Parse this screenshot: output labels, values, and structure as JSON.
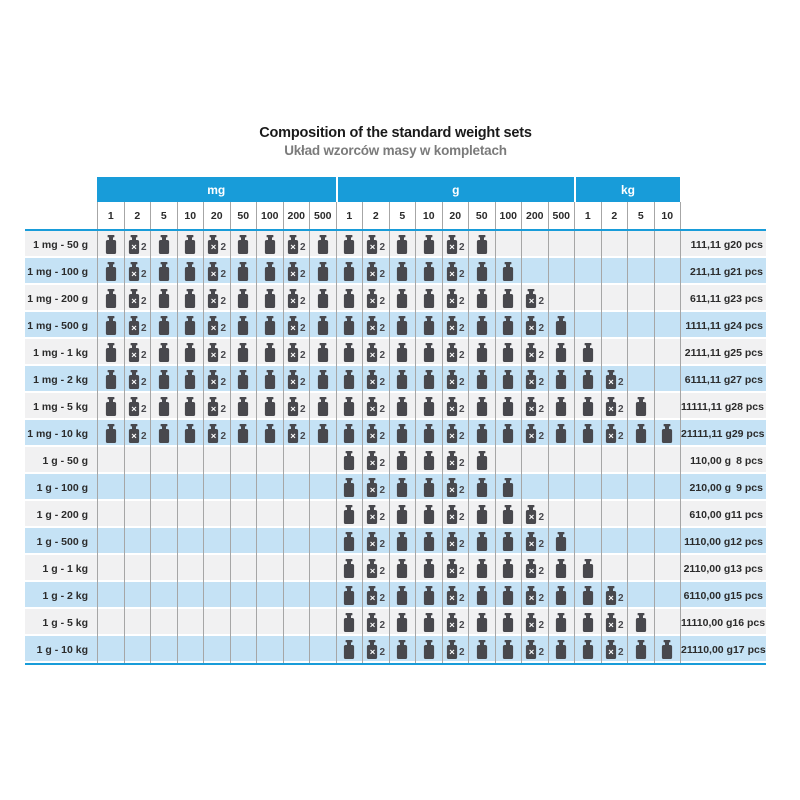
{
  "title": "Composition of the standard weight sets",
  "subtitle": "Układ wzorców masy w kompletach",
  "legend": {
    "cross": "×",
    "count": "2",
    "double_meaning": "two pieces of this denomination"
  },
  "colors": {
    "header_blue": "#189cd9",
    "row_blue": "#c5e2f5",
    "row_gray": "#f1f1f2",
    "grid_line": "#a6a6a6",
    "weight_icon_gray": "#48484d",
    "subtitle_gray": "#7b7b7b"
  },
  "chart_data": {
    "type": "table",
    "title": "Composition of the standard weight sets",
    "subtitle": "Układ wzorców masy w kompletach",
    "unit_groups": [
      {
        "label": "mg",
        "span": 9
      },
      {
        "label": "g",
        "span": 9
      },
      {
        "label": "kg",
        "span": 4
      }
    ],
    "denominations": [
      "1",
      "2",
      "5",
      "10",
      "20",
      "50",
      "100",
      "200",
      "500",
      "1",
      "2",
      "5",
      "10",
      "20",
      "50",
      "100",
      "200",
      "500",
      "1",
      "2",
      "5",
      "10"
    ],
    "cell_legend": {
      "0": "empty",
      "1": "one weight",
      "2": "weight ×2"
    },
    "rows": [
      {
        "label": "1 mg - 50 g",
        "cells": [
          1,
          2,
          1,
          1,
          2,
          1,
          1,
          2,
          1,
          1,
          2,
          1,
          1,
          2,
          1,
          0,
          0,
          0,
          0,
          0,
          0,
          0
        ],
        "mass": "111,11 g",
        "pcs": "20 pcs"
      },
      {
        "label": "1 mg - 100 g",
        "cells": [
          1,
          2,
          1,
          1,
          2,
          1,
          1,
          2,
          1,
          1,
          2,
          1,
          1,
          2,
          1,
          1,
          0,
          0,
          0,
          0,
          0,
          0
        ],
        "mass": "211,11 g",
        "pcs": "21 pcs"
      },
      {
        "label": "1 mg - 200 g",
        "cells": [
          1,
          2,
          1,
          1,
          2,
          1,
          1,
          2,
          1,
          1,
          2,
          1,
          1,
          2,
          1,
          1,
          2,
          0,
          0,
          0,
          0,
          0
        ],
        "mass": "611,11 g",
        "pcs": "23 pcs"
      },
      {
        "label": "1 mg - 500 g",
        "cells": [
          1,
          2,
          1,
          1,
          2,
          1,
          1,
          2,
          1,
          1,
          2,
          1,
          1,
          2,
          1,
          1,
          2,
          1,
          0,
          0,
          0,
          0
        ],
        "mass": "1111,11 g",
        "pcs": "24 pcs"
      },
      {
        "label": "1 mg - 1 kg",
        "cells": [
          1,
          2,
          1,
          1,
          2,
          1,
          1,
          2,
          1,
          1,
          2,
          1,
          1,
          2,
          1,
          1,
          2,
          1,
          1,
          0,
          0,
          0
        ],
        "mass": "2111,11 g",
        "pcs": "25 pcs"
      },
      {
        "label": "1 mg - 2 kg",
        "cells": [
          1,
          2,
          1,
          1,
          2,
          1,
          1,
          2,
          1,
          1,
          2,
          1,
          1,
          2,
          1,
          1,
          2,
          1,
          1,
          2,
          0,
          0
        ],
        "mass": "6111,11 g",
        "pcs": "27 pcs"
      },
      {
        "label": "1 mg - 5 kg",
        "cells": [
          1,
          2,
          1,
          1,
          2,
          1,
          1,
          2,
          1,
          1,
          2,
          1,
          1,
          2,
          1,
          1,
          2,
          1,
          1,
          2,
          1,
          0
        ],
        "mass": "11111,11 g",
        "pcs": "28 pcs"
      },
      {
        "label": "1 mg - 10 kg",
        "cells": [
          1,
          2,
          1,
          1,
          2,
          1,
          1,
          2,
          1,
          1,
          2,
          1,
          1,
          2,
          1,
          1,
          2,
          1,
          1,
          2,
          1,
          1
        ],
        "mass": "21111,11 g",
        "pcs": "29 pcs"
      },
      {
        "label": "1 g - 50 g",
        "cells": [
          0,
          0,
          0,
          0,
          0,
          0,
          0,
          0,
          0,
          1,
          2,
          1,
          1,
          2,
          1,
          0,
          0,
          0,
          0,
          0,
          0,
          0
        ],
        "mass": "110,00 g",
        "pcs": "8 pcs"
      },
      {
        "label": "1 g - 100 g",
        "cells": [
          0,
          0,
          0,
          0,
          0,
          0,
          0,
          0,
          0,
          1,
          2,
          1,
          1,
          2,
          1,
          1,
          0,
          0,
          0,
          0,
          0,
          0
        ],
        "mass": "210,00 g",
        "pcs": "9 pcs"
      },
      {
        "label": "1 g - 200 g",
        "cells": [
          0,
          0,
          0,
          0,
          0,
          0,
          0,
          0,
          0,
          1,
          2,
          1,
          1,
          2,
          1,
          1,
          2,
          0,
          0,
          0,
          0,
          0
        ],
        "mass": "610,00 g",
        "pcs": "11 pcs"
      },
      {
        "label": "1 g - 500 g",
        "cells": [
          0,
          0,
          0,
          0,
          0,
          0,
          0,
          0,
          0,
          1,
          2,
          1,
          1,
          2,
          1,
          1,
          2,
          1,
          0,
          0,
          0,
          0
        ],
        "mass": "1110,00 g",
        "pcs": "12 pcs"
      },
      {
        "label": "1 g - 1 kg",
        "cells": [
          0,
          0,
          0,
          0,
          0,
          0,
          0,
          0,
          0,
          1,
          2,
          1,
          1,
          2,
          1,
          1,
          2,
          1,
          1,
          0,
          0,
          0
        ],
        "mass": "2110,00 g",
        "pcs": "13 pcs"
      },
      {
        "label": "1 g - 2 kg",
        "cells": [
          0,
          0,
          0,
          0,
          0,
          0,
          0,
          0,
          0,
          1,
          2,
          1,
          1,
          2,
          1,
          1,
          2,
          1,
          1,
          2,
          0,
          0
        ],
        "mass": "6110,00 g",
        "pcs": "15 pcs"
      },
      {
        "label": "1 g - 5 kg",
        "cells": [
          0,
          0,
          0,
          0,
          0,
          0,
          0,
          0,
          0,
          1,
          2,
          1,
          1,
          2,
          1,
          1,
          2,
          1,
          1,
          2,
          1,
          0
        ],
        "mass": "11110,00 g",
        "pcs": "16 pcs"
      },
      {
        "label": "1 g - 10 kg",
        "cells": [
          0,
          0,
          0,
          0,
          0,
          0,
          0,
          0,
          0,
          1,
          2,
          1,
          1,
          2,
          1,
          1,
          2,
          1,
          1,
          2,
          1,
          1
        ],
        "mass": "21110,00 g",
        "pcs": "17 pcs"
      }
    ]
  }
}
